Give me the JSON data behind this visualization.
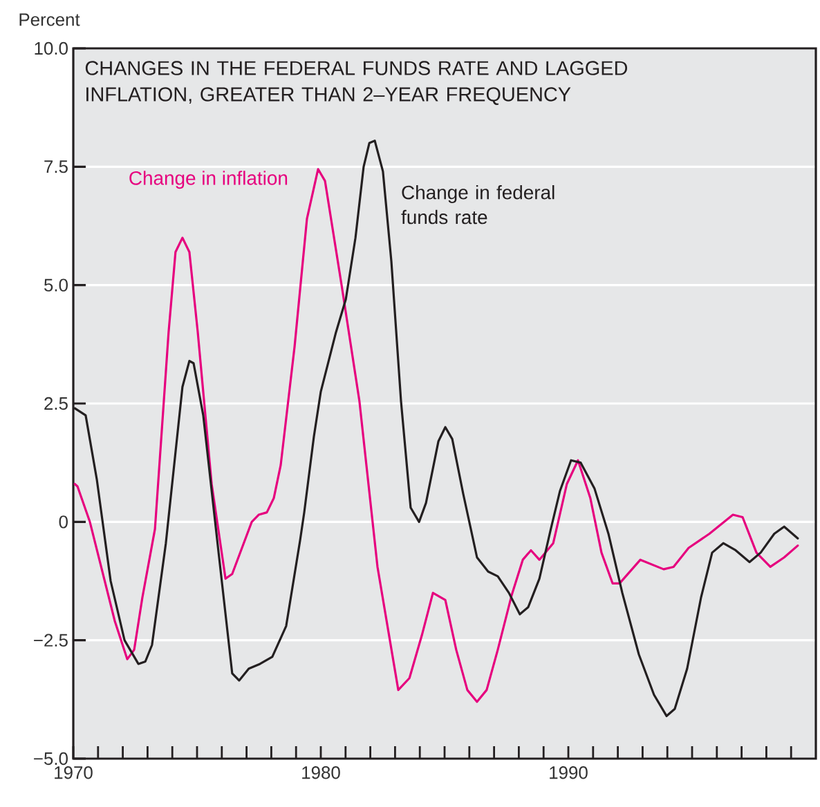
{
  "chart_data": {
    "type": "line",
    "title": "CHANGES IN THE FEDERAL FUNDS RATE AND LAGGED INFLATION, GREATER THAN 2–YEAR FREQUENCY",
    "ylabel": "Percent",
    "xlim": [
      1970,
      2000
    ],
    "ylim": [
      -5,
      10
    ],
    "xticks": [
      1970,
      {
        "value": 1971,
        "label": null
      },
      {
        "value": 1972,
        "label": null
      },
      {
        "value": 1973,
        "label": null
      },
      {
        "value": 1974,
        "label": null
      },
      {
        "value": 1975,
        "label": null
      },
      {
        "value": 1976,
        "label": null
      },
      {
        "value": 1977,
        "label": null
      },
      {
        "value": 1978,
        "label": null
      },
      {
        "value": 1979,
        "label": null
      },
      1980,
      {
        "value": 1981,
        "label": null
      },
      {
        "value": 1982,
        "label": null
      },
      {
        "value": 1983,
        "label": null
      },
      {
        "value": 1984,
        "label": null
      },
      {
        "value": 1985,
        "label": null
      },
      {
        "value": 1986,
        "label": null
      },
      {
        "value": 1987,
        "label": null
      },
      {
        "value": 1988,
        "label": null
      },
      {
        "value": 1989,
        "label": null
      },
      1990,
      {
        "value": 1991,
        "label": null
      },
      {
        "value": 1992,
        "label": null
      },
      {
        "value": 1993,
        "label": null
      },
      {
        "value": 1994,
        "label": null
      },
      {
        "value": 1995,
        "label": null
      },
      {
        "value": 1996,
        "label": null
      },
      {
        "value": 1997,
        "label": null
      },
      {
        "value": 1998,
        "label": null
      },
      {
        "value": 1999,
        "label": null
      }
    ],
    "yticks": [
      {
        "value": -5,
        "label": "−5.0"
      },
      {
        "value": -2.5,
        "label": "−2.5"
      },
      0,
      {
        "value": 2.5,
        "label": "2.5"
      },
      {
        "value": 5,
        "label": "5.0"
      },
      {
        "value": 7.5,
        "label": "7.5"
      },
      {
        "value": 10,
        "label": "10.0"
      }
    ],
    "grid": "y",
    "series": [
      {
        "name": "Change in inflation",
        "color": "#e6007e",
        "x": [
          1970.06,
          1970.17,
          1970.67,
          1971.68,
          1972.18,
          1972.46,
          1972.79,
          1973.3,
          1973.85,
          1974.13,
          1974.41,
          1974.69,
          1975.03,
          1975.59,
          1976.15,
          1976.42,
          1977.21,
          1977.49,
          1977.82,
          1978.1,
          1978.38,
          1978.94,
          1979.44,
          1979.89,
          1980.17,
          1980.84,
          1981.56,
          1982.29,
          1983.13,
          1983.58,
          1984.08,
          1984.53,
          1985.03,
          1985.47,
          1985.92,
          1986.31,
          1986.7,
          1987.15,
          1987.71,
          1988.16,
          1988.49,
          1988.83,
          1989.39,
          1989.94,
          1990.39,
          1990.89,
          1991.34,
          1991.79,
          1992.07,
          1992.91,
          1993.85,
          1994.25,
          1994.86,
          1995.7,
          1996.65,
          1997.04,
          1997.6,
          1998.16,
          1998.72,
          1999.27
        ],
        "values": [
          0.8,
          0.75,
          0,
          -2.1,
          -2.9,
          -2.7,
          -1.6,
          -0.15,
          4.0,
          5.7,
          6.0,
          5.7,
          4.0,
          0.8,
          -1.2,
          -1.1,
          0,
          0.15,
          0.2,
          0.5,
          1.2,
          3.7,
          6.4,
          7.45,
          7.2,
          5.0,
          2.55,
          -0.95,
          -3.55,
          -3.3,
          -2.4,
          -1.5,
          -1.65,
          -2.7,
          -3.55,
          -3.8,
          -3.55,
          -2.7,
          -1.55,
          -0.8,
          -0.6,
          -0.8,
          -0.45,
          0.8,
          1.3,
          0.5,
          -0.65,
          -1.3,
          -1.3,
          -0.8,
          -1.0,
          -0.95,
          -0.55,
          -0.25,
          0.15,
          0.1,
          -0.65,
          -0.95,
          -0.75,
          -0.5
        ]
      },
      {
        "name": "Change in federal funds rate",
        "color": "#231f20",
        "x": [
          1970.06,
          1970.5,
          1970.95,
          1971.51,
          1972.07,
          1972.63,
          1972.91,
          1973.18,
          1973.74,
          1974.41,
          1974.69,
          1974.86,
          1975.25,
          1975.87,
          1976.42,
          1976.7,
          1977.09,
          1977.54,
          1978.04,
          1978.6,
          1979.16,
          1979.33,
          1979.72,
          1980.0,
          1980.61,
          1981.01,
          1981.4,
          1981.73,
          1981.96,
          1982.18,
          1982.51,
          1982.85,
          1983.24,
          1983.63,
          1983.97,
          1984.25,
          1984.75,
          1985.03,
          1985.31,
          1985.75,
          1986.31,
          1986.76,
          1987.15,
          1987.6,
          1988.04,
          1988.38,
          1988.83,
          1989.27,
          1989.66,
          1990.11,
          1990.5,
          1991.06,
          1991.62,
          1992.18,
          1992.85,
          1993.46,
          1993.97,
          1994.3,
          1994.8,
          1995.36,
          1995.81,
          1996.26,
          1996.76,
          1997.32,
          1997.77,
          1998.32,
          1998.72,
          1999.27
        ],
        "values": [
          2.4,
          2.25,
          0.9,
          -1.25,
          -2.5,
          -3.0,
          -2.95,
          -2.6,
          -0.45,
          2.85,
          3.4,
          3.35,
          2.25,
          -0.65,
          -3.2,
          -3.35,
          -3.1,
          -3.0,
          -2.85,
          -2.2,
          -0.4,
          0.2,
          1.8,
          2.75,
          4.0,
          4.7,
          6.0,
          7.5,
          8.0,
          8.05,
          7.4,
          5.5,
          2.55,
          0.3,
          0.0,
          0.4,
          1.7,
          2.0,
          1.75,
          0.6,
          -0.75,
          -1.05,
          -1.15,
          -1.5,
          -1.95,
          -1.8,
          -1.2,
          -0.2,
          0.65,
          1.3,
          1.25,
          0.7,
          -0.25,
          -1.5,
          -2.8,
          -3.65,
          -4.1,
          -3.95,
          -3.1,
          -1.6,
          -0.65,
          -0.45,
          -0.6,
          -0.85,
          -0.65,
          -0.25,
          -0.1,
          -0.35
        ]
      }
    ]
  }
}
